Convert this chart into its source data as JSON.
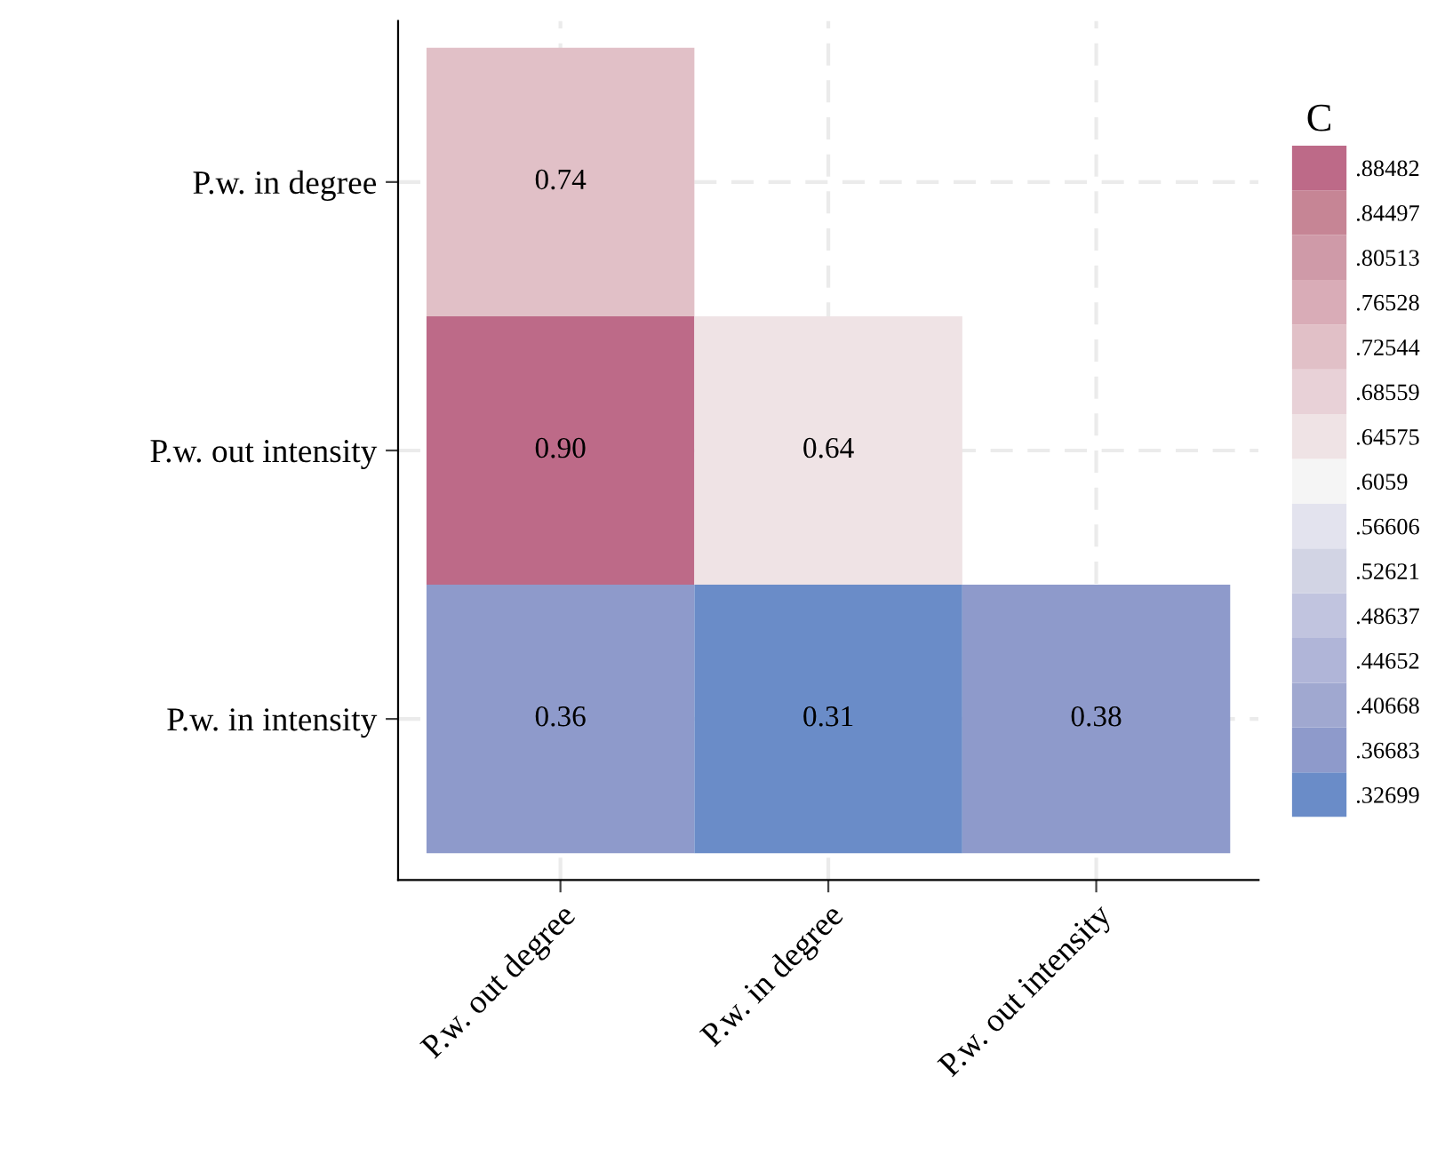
{
  "chart_data": {
    "type": "heatmap",
    "categories": [
      "P.w. out degree",
      "P.w. in degree",
      "P.w. out intensity"
    ],
    "y_categories": [
      "P.w. in degree",
      "P.w. out intensity",
      "P.w. in intensity"
    ],
    "cells": [
      [
        0.74,
        null,
        null
      ],
      [
        0.9,
        0.64,
        null
      ],
      [
        0.36,
        0.31,
        0.38
      ]
    ],
    "cell_labels": [
      [
        "0.74",
        null,
        null
      ],
      [
        "0.90",
        "0.64",
        null
      ],
      [
        "0.36",
        "0.31",
        "0.38"
      ]
    ],
    "data_labels": true,
    "clabel": "C",
    "clim": [
      0.30707,
      0.90474
    ],
    "cticks": [
      {
        "value": 0.32699,
        "label": ".32699"
      },
      {
        "value": 0.36683,
        "label": ".36683"
      },
      {
        "value": 0.40668,
        "label": ".40668"
      },
      {
        "value": 0.44652,
        "label": ".44652"
      },
      {
        "value": 0.48637,
        "label": ".48637"
      },
      {
        "value": 0.52621,
        "label": ".52621"
      },
      {
        "value": 0.56606,
        "label": ".56606"
      },
      {
        "value": 0.6059,
        "label": ".6059"
      },
      {
        "value": 0.64575,
        "label": ".64575"
      },
      {
        "value": 0.68559,
        "label": ".68559"
      },
      {
        "value": 0.72544,
        "label": ".72544"
      },
      {
        "value": 0.76528,
        "label": ".76528"
      },
      {
        "value": 0.80513,
        "label": ".80513"
      },
      {
        "value": 0.84497,
        "label": ".84497"
      },
      {
        "value": 0.88482,
        "label": ".88482"
      }
    ],
    "colors": [
      "#6a8cc8",
      "#8e9acb",
      "#a0a8d0",
      "#b0b5d8",
      "#c1c4df",
      "#d2d4e4",
      "#e3e3ee",
      "#f5f5f5",
      "#efe3e5",
      "#e8d1d7",
      "#e1c0c7",
      "#d9acb7",
      "#cf9aa8",
      "#c68595",
      "#bd6a88"
    ],
    "grid": true
  }
}
